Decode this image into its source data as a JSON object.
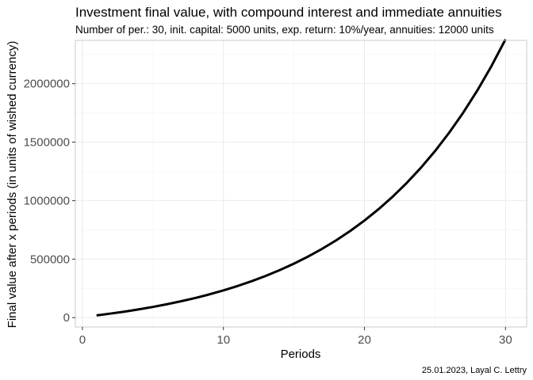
{
  "chart_data": {
    "type": "line",
    "title": "Investment final value, with compound interest and immediate annuities",
    "subtitle": "Number of per.: 30, init. capital: 5000 units, exp. return: 10%/year, annuities: 12000 units",
    "xlabel": "Periods",
    "ylabel": "Final value after x periods (in units of wished currency)",
    "caption": "25.01.2023, Layal C. Lettry",
    "xlim": [
      -0.5,
      31.5
    ],
    "ylim": [
      -80000,
      2370000
    ],
    "x_ticks": [
      0,
      10,
      20,
      30
    ],
    "x_tick_labels": [
      "0",
      "10",
      "20",
      "30"
    ],
    "x_minor_ticks": [
      5,
      15,
      25
    ],
    "y_ticks": [
      0,
      500000,
      1000000,
      1500000,
      2000000
    ],
    "y_tick_labels": [
      "0",
      "500000",
      "1000000",
      "1500000",
      "2000000"
    ],
    "y_minor_ticks": [
      250000,
      750000,
      1250000,
      1750000,
      2250000
    ],
    "grid": true,
    "series": [
      {
        "color": "#000000",
        "x": [
          1,
          2,
          3,
          4,
          5,
          6,
          7,
          8,
          9,
          10,
          11,
          12,
          13,
          14,
          15,
          16,
          17,
          18,
          19,
          20,
          21,
          22,
          23,
          24,
          25,
          26,
          27,
          28,
          29,
          30
        ],
        "values": [
          18700,
          34720,
          51392,
          70731,
          91324,
          114656,
          139722,
          167494,
          198443,
          232690,
          270159,
          311375,
          356712,
          406583,
          461441,
          521785,
          588164,
          661180,
          741498,
          829848,
          927033,
          1033936,
          1151530,
          1280883,
          1423171,
          1579688,
          1751857,
          1941242,
          2149567,
          2378723
        ]
      }
    ]
  }
}
